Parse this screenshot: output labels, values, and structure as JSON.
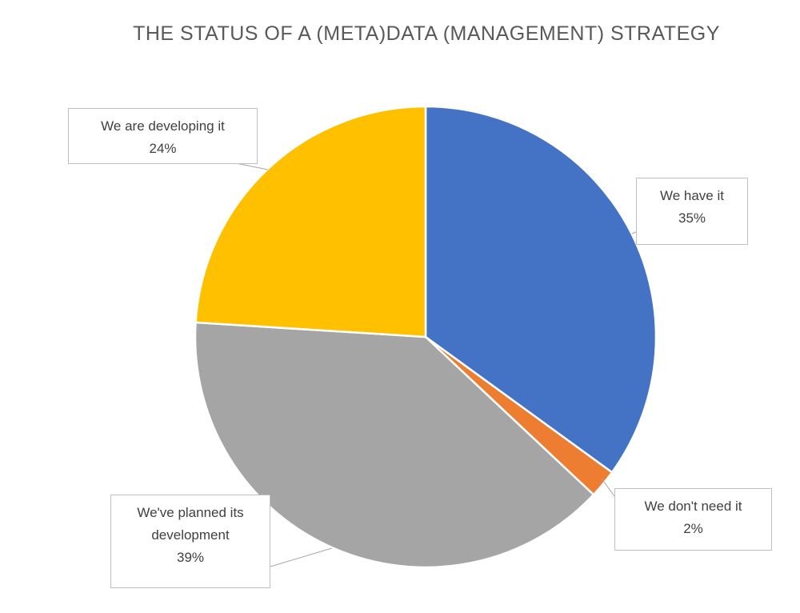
{
  "chart_data": {
    "type": "pie",
    "title": "THE STATUS OF A (META)DATA (MANAGEMENT) STRATEGY",
    "categories": [
      "We have it",
      "We don't need it",
      "We've planned its development",
      "We are developing it"
    ],
    "values": [
      35,
      2,
      39,
      24
    ],
    "value_labels": [
      "35%",
      "2%",
      "39%",
      "24%"
    ],
    "colors": [
      "#4472c4",
      "#ed7d31",
      "#a5a5a5",
      "#ffc000"
    ]
  }
}
